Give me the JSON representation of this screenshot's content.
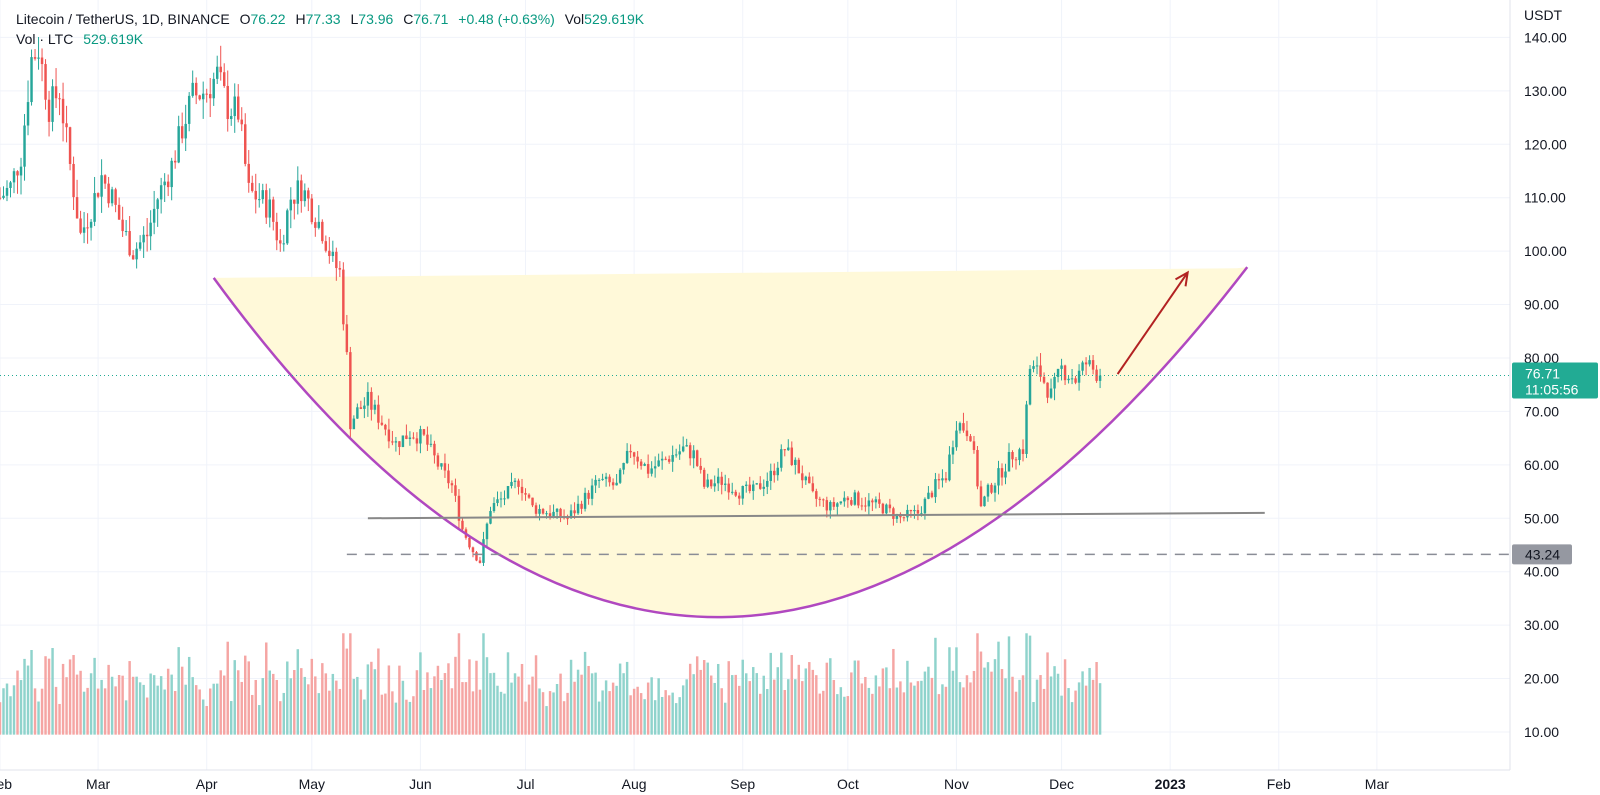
{
  "legend": {
    "symbol": "Litecoin / TetherUS, 1D, BINANCE",
    "o_label": "O",
    "o": "76.22",
    "h_label": "H",
    "h": "77.33",
    "l_label": "L",
    "l": "73.96",
    "c_label": "C",
    "c": "76.71",
    "change": "+0.48 (+0.63%)",
    "vol_label": "Vol",
    "vol": "529.619K",
    "vol2_label": "Vol · LTC",
    "vol2": "529.619K"
  },
  "price_badge": {
    "price": "76.71",
    "countdown": "11:05:56"
  },
  "level_badge": "43.24",
  "colors": {
    "up": "#26a69a",
    "down": "#ef5350",
    "vol_up": "#8fd3cc",
    "vol_down": "#f5a5a3",
    "cup": "#b048c0",
    "cup_fill": "#fff9d9",
    "support": "#888888",
    "arrow": "#b22222",
    "badge": "#22ab94",
    "level_badge": "#9598a1",
    "grid": "#f0f3fa"
  },
  "chart_data": {
    "type": "candlestick",
    "title": "Litecoin / TetherUS, 1D, BINANCE",
    "y_axis": {
      "unit": "USDT",
      "ticks": [
        140,
        130,
        120,
        110,
        100,
        90,
        80,
        70,
        60,
        50,
        40,
        30,
        20,
        10
      ],
      "tick_labels": [
        "140.00",
        "130.00",
        "120.00",
        "110.00",
        "100.00",
        "90.00",
        "80.00",
        "70.00",
        "60.00",
        "50.00",
        "40.00",
        "30.00",
        "20.00",
        "10.00"
      ],
      "range": [
        8.5,
        147
      ]
    },
    "x_axis": {
      "ticks": [
        "2022-02-01",
        "2022-03-01",
        "2022-04-01",
        "2022-05-01",
        "2022-06-01",
        "2022-07-01",
        "2022-08-01",
        "2022-09-01",
        "2022-10-01",
        "2022-11-01",
        "2022-12-01",
        "2023-01-01",
        "2023-02-01",
        "2023-03-01"
      ],
      "tick_labels": [
        "Feb",
        "Mar",
        "Apr",
        "May",
        "Jun",
        "Jul",
        "Aug",
        "Sep",
        "Oct",
        "Nov",
        "Dec",
        "2023",
        "Feb",
        "Mar"
      ],
      "range": [
        "2022-02-01",
        "2023-04-08"
      ]
    },
    "last_price": 76.71,
    "ohlc_anchors": [
      [
        "2022-02-01",
        110
      ],
      [
        "2022-02-04",
        112
      ],
      [
        "2022-02-07",
        118
      ],
      [
        "2022-02-10",
        136
      ],
      [
        "2022-02-12",
        138
      ],
      [
        "2022-02-15",
        127
      ],
      [
        "2022-02-18",
        130
      ],
      [
        "2022-02-21",
        116
      ],
      [
        "2022-02-24",
        103
      ],
      [
        "2022-02-27",
        108
      ],
      [
        "2022-03-02",
        114
      ],
      [
        "2022-03-05",
        110
      ],
      [
        "2022-03-08",
        104
      ],
      [
        "2022-03-11",
        100
      ],
      [
        "2022-03-15",
        103
      ],
      [
        "2022-03-18",
        110
      ],
      [
        "2022-03-22",
        116
      ],
      [
        "2022-03-25",
        123
      ],
      [
        "2022-03-28",
        129
      ],
      [
        "2022-04-01",
        130
      ],
      [
        "2022-04-04",
        133
      ],
      [
        "2022-04-07",
        127
      ],
      [
        "2022-04-10",
        126
      ],
      [
        "2022-04-13",
        111
      ],
      [
        "2022-04-16",
        110
      ],
      [
        "2022-04-19",
        108
      ],
      [
        "2022-04-22",
        101
      ],
      [
        "2022-04-25",
        110
      ],
      [
        "2022-04-28",
        112
      ],
      [
        "2022-05-01",
        108
      ],
      [
        "2022-05-04",
        104
      ],
      [
        "2022-05-07",
        98
      ],
      [
        "2022-05-09",
        96
      ],
      [
        "2022-05-11",
        80
      ],
      [
        "2022-05-12",
        68
      ],
      [
        "2022-05-14",
        70
      ],
      [
        "2022-05-17",
        72
      ],
      [
        "2022-05-21",
        68
      ],
      [
        "2022-05-25",
        64
      ],
      [
        "2022-05-29",
        66
      ],
      [
        "2022-06-02",
        65
      ],
      [
        "2022-06-06",
        60
      ],
      [
        "2022-06-10",
        56
      ],
      [
        "2022-06-13",
        48
      ],
      [
        "2022-06-16",
        44
      ],
      [
        "2022-06-18",
        42
      ],
      [
        "2022-06-21",
        52
      ],
      [
        "2022-06-25",
        54
      ],
      [
        "2022-06-29",
        57
      ],
      [
        "2022-07-03",
        52
      ],
      [
        "2022-07-08",
        51
      ],
      [
        "2022-07-13",
        50
      ],
      [
        "2022-07-17",
        53
      ],
      [
        "2022-07-22",
        57
      ],
      [
        "2022-07-27",
        56
      ],
      [
        "2022-07-31",
        63
      ],
      [
        "2022-08-05",
        59
      ],
      [
        "2022-08-10",
        61
      ],
      [
        "2022-08-15",
        63
      ],
      [
        "2022-08-18",
        62
      ],
      [
        "2022-08-21",
        56
      ],
      [
        "2022-08-26",
        57
      ],
      [
        "2022-08-31",
        55
      ],
      [
        "2022-09-04",
        55
      ],
      [
        "2022-09-09",
        58
      ],
      [
        "2022-09-13",
        63
      ],
      [
        "2022-09-17",
        59
      ],
      [
        "2022-09-21",
        54
      ],
      [
        "2022-09-26",
        52
      ],
      [
        "2022-10-01",
        54
      ],
      [
        "2022-10-06",
        53
      ],
      [
        "2022-10-11",
        52
      ],
      [
        "2022-10-16",
        50
      ],
      [
        "2022-10-21",
        51
      ],
      [
        "2022-10-26",
        56
      ],
      [
        "2022-10-29",
        58
      ],
      [
        "2022-11-01",
        68
      ],
      [
        "2022-11-05",
        66
      ],
      [
        "2022-11-08",
        52
      ],
      [
        "2022-11-10",
        55
      ],
      [
        "2022-11-13",
        58
      ],
      [
        "2022-11-17",
        62
      ],
      [
        "2022-11-20",
        63
      ],
      [
        "2022-11-22",
        78
      ],
      [
        "2022-11-25",
        77
      ],
      [
        "2022-11-28",
        73
      ],
      [
        "2022-12-01",
        78
      ],
      [
        "2022-12-05",
        76
      ],
      [
        "2022-12-08",
        79
      ],
      [
        "2022-12-12",
        76.71
      ]
    ],
    "volume_panel": {
      "max_value": 44,
      "note": "volume bars colored by candle direction"
    },
    "annotations": {
      "cup_curve": {
        "start": [
          "2022-04-03",
          95
        ],
        "bottom": [
          "2022-08-26",
          31.5
        ],
        "end": [
          "2023-01-23",
          97
        ]
      },
      "rim": {
        "start": [
          "2022-04-04",
          95
        ],
        "end": [
          "2023-01-20",
          96.8
        ]
      },
      "support_line": {
        "start": [
          "2022-05-17",
          50
        ],
        "end": [
          "2023-01-28",
          51
        ]
      },
      "dashed_level": {
        "start": [
          "2022-05-11",
          43.24
        ],
        "end": [
          "2023-04-08",
          43.24
        ],
        "value": 43.24
      },
      "arrow": {
        "start": [
          "2022-12-17",
          77
        ],
        "end": [
          "2023-01-06",
          96
        ]
      }
    }
  }
}
